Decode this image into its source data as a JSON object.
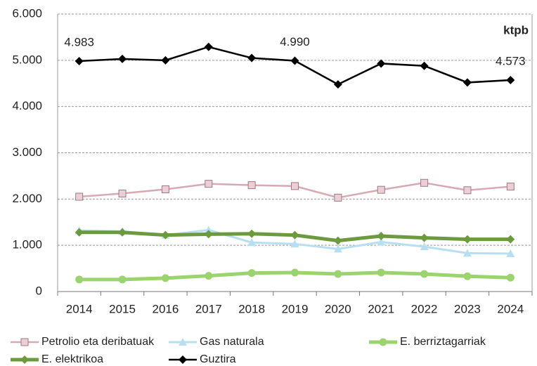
{
  "chart_data": {
    "type": "line",
    "unit_label": "ktpb",
    "categories": [
      "2014",
      "2015",
      "2016",
      "2017",
      "2018",
      "2019",
      "2020",
      "2021",
      "2022",
      "2023",
      "2024"
    ],
    "series": [
      {
        "name": "Petrolio eta deribatuak",
        "color": "#d7a9b4",
        "marker": "square",
        "values": [
          2050,
          2120,
          2210,
          2330,
          2300,
          2280,
          2030,
          2200,
          2350,
          2190,
          2270
        ]
      },
      {
        "name": "Gas naturala",
        "color": "#b7dff2",
        "marker": "triangle",
        "values": [
          1320,
          1300,
          1220,
          1330,
          1060,
          1030,
          920,
          1070,
          970,
          830,
          820
        ]
      },
      {
        "name": "E. berriztagarriak",
        "color": "#9bd36f",
        "marker": "circle",
        "values": [
          260,
          260,
          290,
          340,
          400,
          410,
          380,
          410,
          380,
          330,
          300
        ]
      },
      {
        "name": "E. elektrikoa",
        "color": "#6c9a3f",
        "marker": "diamond",
        "values": [
          1280,
          1280,
          1220,
          1240,
          1250,
          1220,
          1100,
          1200,
          1160,
          1130,
          1130
        ]
      },
      {
        "name": "Guztira",
        "color": "#000000",
        "marker": "diamond",
        "values": [
          4983,
          5030,
          5000,
          5290,
          5050,
          4990,
          4480,
          4930,
          4880,
          4520,
          4573
        ],
        "value_labels": [
          "4.983",
          null,
          null,
          null,
          null,
          "4.990",
          null,
          null,
          null,
          null,
          "4.573"
        ]
      }
    ],
    "ylim": [
      0,
      6000
    ],
    "yticks": [
      0,
      {
        "value": 1000,
        "label": "1.000"
      },
      {
        "value": 2000,
        "label": "2.000"
      },
      {
        "value": 3000,
        "label": "3.000"
      },
      {
        "value": 4000,
        "label": "4.000"
      },
      {
        "value": 5000,
        "label": "5.000"
      },
      {
        "value": 6000,
        "label": "6.000"
      }
    ],
    "grid": true
  }
}
